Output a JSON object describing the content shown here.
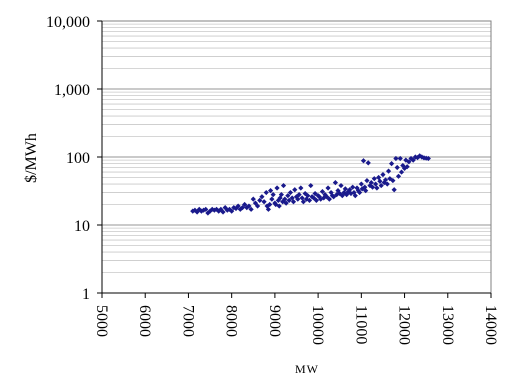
{
  "chart_data": {
    "type": "scatter",
    "title": "",
    "xlabel": "MW",
    "ylabel": "$/MWh",
    "x_scale": "linear",
    "y_scale": "log",
    "xlim": [
      5000,
      14000
    ],
    "ylim": [
      1,
      10000
    ],
    "x_ticks": [
      {
        "value": 5000,
        "label": "5000"
      },
      {
        "value": 6000,
        "label": "6000"
      },
      {
        "value": 7000,
        "label": "7000"
      },
      {
        "value": 8000,
        "label": "8000"
      },
      {
        "value": 9000,
        "label": "9000"
      },
      {
        "value": 10000,
        "label": "10000"
      },
      {
        "value": 11000,
        "label": "11000"
      },
      {
        "value": 12000,
        "label": "12000"
      },
      {
        "value": 13000,
        "label": "13000"
      },
      {
        "value": 14000,
        "label": "14000"
      }
    ],
    "y_ticks": [
      {
        "value": 1,
        "label": "1"
      },
      {
        "value": 10,
        "label": "10"
      },
      {
        "value": 100,
        "label": "100"
      },
      {
        "value": 1000,
        "label": "1,000"
      },
      {
        "value": 10000,
        "label": "10,000"
      }
    ],
    "grid": "horizontal major and minor",
    "legend": "none",
    "marker": "diamond",
    "marker_color": "#1a1a8c",
    "series": [
      {
        "points": [
          [
            7100,
            16
          ],
          [
            7150,
            16.5
          ],
          [
            7200,
            15.5
          ],
          [
            7250,
            17
          ],
          [
            7300,
            16
          ],
          [
            7350,
            16.5
          ],
          [
            7400,
            17
          ],
          [
            7450,
            15
          ],
          [
            7500,
            16
          ],
          [
            7550,
            17
          ],
          [
            7600,
            16.5
          ],
          [
            7650,
            17
          ],
          [
            7700,
            16
          ],
          [
            7750,
            17
          ],
          [
            7800,
            15.5
          ],
          [
            7850,
            18
          ],
          [
            7900,
            16.5
          ],
          [
            7950,
            17
          ],
          [
            8000,
            16
          ],
          [
            8050,
            18
          ],
          [
            8100,
            17.5
          ],
          [
            8150,
            19
          ],
          [
            8200,
            17
          ],
          [
            8250,
            18
          ],
          [
            8300,
            20
          ],
          [
            8350,
            18
          ],
          [
            8400,
            19
          ],
          [
            8450,
            17
          ],
          [
            8500,
            24
          ],
          [
            8550,
            21
          ],
          [
            8600,
            19
          ],
          [
            8650,
            23
          ],
          [
            8700,
            26
          ],
          [
            8750,
            22
          ],
          [
            8800,
            30
          ],
          [
            8820,
            19
          ],
          [
            8850,
            17
          ],
          [
            8880,
            20
          ],
          [
            8900,
            32
          ],
          [
            8930,
            24
          ],
          [
            8960,
            28
          ],
          [
            9000,
            21
          ],
          [
            9020,
            20
          ],
          [
            9050,
            35
          ],
          [
            9080,
            23
          ],
          [
            9100,
            19
          ],
          [
            9120,
            25
          ],
          [
            9150,
            28
          ],
          [
            9180,
            22
          ],
          [
            9200,
            38
          ],
          [
            9230,
            24
          ],
          [
            9260,
            21
          ],
          [
            9300,
            27
          ],
          [
            9330,
            23
          ],
          [
            9360,
            30
          ],
          [
            9400,
            25
          ],
          [
            9430,
            22
          ],
          [
            9460,
            33
          ],
          [
            9500,
            26
          ],
          [
            9530,
            24
          ],
          [
            9560,
            28
          ],
          [
            9600,
            35
          ],
          [
            9630,
            25
          ],
          [
            9660,
            22
          ],
          [
            9700,
            29
          ],
          [
            9730,
            24
          ],
          [
            9760,
            27
          ],
          [
            9800,
            23
          ],
          [
            9830,
            38
          ],
          [
            9860,
            26
          ],
          [
            9900,
            25
          ],
          [
            9930,
            29
          ],
          [
            9960,
            23
          ],
          [
            10000,
            27
          ],
          [
            10030,
            26
          ],
          [
            10060,
            24
          ],
          [
            10100,
            31
          ],
          [
            10130,
            25
          ],
          [
            10160,
            28
          ],
          [
            10200,
            26
          ],
          [
            10230,
            35
          ],
          [
            10260,
            24
          ],
          [
            10300,
            30
          ],
          [
            10330,
            27
          ],
          [
            10360,
            26
          ],
          [
            10400,
            42
          ],
          [
            10430,
            28
          ],
          [
            10460,
            32
          ],
          [
            10500,
            29
          ],
          [
            10530,
            38
          ],
          [
            10560,
            27
          ],
          [
            10600,
            30
          ],
          [
            10630,
            34
          ],
          [
            10660,
            28
          ],
          [
            10700,
            31
          ],
          [
            10730,
            33
          ],
          [
            10760,
            29
          ],
          [
            10800,
            36
          ],
          [
            10830,
            30
          ],
          [
            10860,
            27
          ],
          [
            10900,
            35
          ],
          [
            10930,
            32
          ],
          [
            10960,
            30
          ],
          [
            11000,
            40
          ],
          [
            11020,
            34
          ],
          [
            11050,
            88
          ],
          [
            11080,
            36
          ],
          [
            11100,
            32
          ],
          [
            11130,
            45
          ],
          [
            11160,
            82
          ],
          [
            11200,
            38
          ],
          [
            11230,
            42
          ],
          [
            11260,
            36
          ],
          [
            11300,
            48
          ],
          [
            11330,
            40
          ],
          [
            11360,
            35
          ],
          [
            11400,
            50
          ],
          [
            11430,
            44
          ],
          [
            11460,
            38
          ],
          [
            11500,
            55
          ],
          [
            11530,
            42
          ],
          [
            11560,
            46
          ],
          [
            11600,
            40
          ],
          [
            11630,
            62
          ],
          [
            11660,
            48
          ],
          [
            11700,
            80
          ],
          [
            11730,
            45
          ],
          [
            11760,
            33
          ],
          [
            11800,
            95
          ],
          [
            11830,
            70
          ],
          [
            11860,
            52
          ],
          [
            11900,
            95
          ],
          [
            11930,
            60
          ],
          [
            11960,
            75
          ],
          [
            12000,
            68
          ],
          [
            12030,
            90
          ],
          [
            12060,
            72
          ],
          [
            12100,
            85
          ],
          [
            12150,
            95
          ],
          [
            12200,
            90
          ],
          [
            12250,
            100
          ],
          [
            12300,
            98
          ],
          [
            12350,
            104
          ],
          [
            12400,
            100
          ],
          [
            12450,
            97
          ],
          [
            12500,
            96
          ],
          [
            12550,
            95
          ]
        ]
      }
    ]
  }
}
